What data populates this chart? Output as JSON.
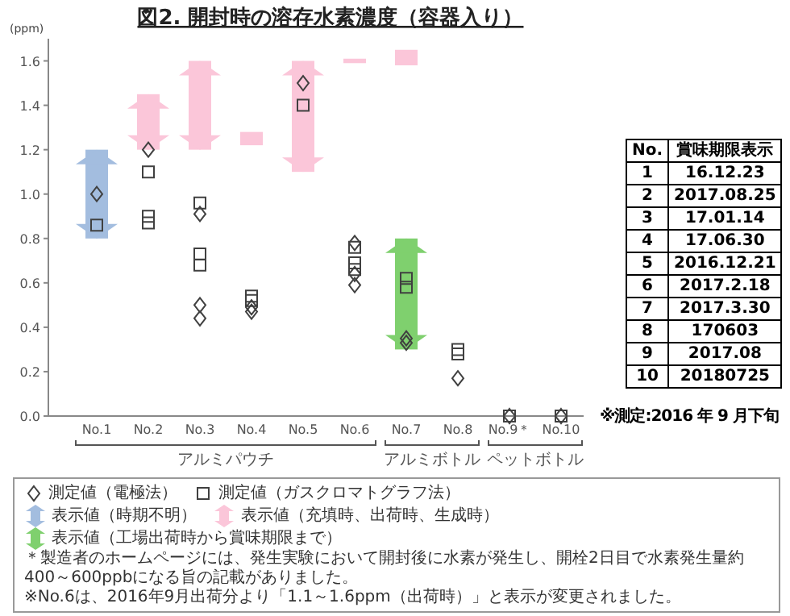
{
  "chart_data": {
    "type": "scatter",
    "title": "図2. 開封時の溶存水素濃度（容器入り）",
    "ylabel": "(ppm)",
    "categories": [
      "No.1",
      "No.2",
      "No.3",
      "No.4",
      "No.5",
      "No.6",
      "No.7",
      "No.8",
      "No.9＊",
      "No.10"
    ],
    "ylim": [
      0,
      1.7
    ],
    "yticks": [
      {
        "value": 0,
        "label": "0.0"
      },
      0.2,
      0.4,
      0.6,
      0.8,
      {
        "value": 1,
        "label": "1.0"
      },
      1.2,
      1.4,
      1.6
    ],
    "legend": "bottom",
    "series": [
      {
        "type": "bar",
        "name": "表示値（時期不明）",
        "color": "#a3bddf",
        "values": [
          0.4,
          null,
          null,
          null,
          null,
          null,
          null,
          null,
          null,
          null
        ],
        "base": [
          0.8,
          null,
          null,
          null,
          null,
          null,
          null,
          null,
          null,
          null
        ]
      },
      {
        "type": "bar",
        "name": "表示値（充填時、出荷時、生成時）",
        "color": "#fbc6d9",
        "values": [
          null,
          0.25,
          0.4,
          0.06,
          0.5,
          0.02,
          0.07,
          null,
          null,
          null
        ],
        "base": [
          null,
          1.2,
          1.2,
          1.22,
          1.1,
          1.59,
          1.58,
          null,
          null,
          null
        ]
      },
      {
        "type": "bar",
        "name": "表示値（工場出荷時から賞味期限まで）",
        "color": "#7fd06e",
        "values": [
          null,
          null,
          null,
          null,
          null,
          null,
          0.5,
          null,
          null,
          null
        ],
        "base": [
          null,
          null,
          null,
          null,
          null,
          null,
          0.3,
          null,
          null,
          null
        ]
      },
      {
        "type": "scatter",
        "name": "測定値（電極法）",
        "color": "#404040",
        "marker": "diamond",
        "x": [
          "No.1",
          "No.2",
          "No.3",
          "No.3",
          "No.3",
          "No.4",
          "No.4",
          "No.5",
          "No.6",
          "No.6",
          "No.6",
          "No.7",
          "No.7",
          "No.8",
          "No.9＊",
          "No.10"
        ],
        "values": [
          1.0,
          1.2,
          0.91,
          0.5,
          0.44,
          0.49,
          0.47,
          1.5,
          0.78,
          0.64,
          0.59,
          0.35,
          0.33,
          0.17,
          0,
          0
        ]
      },
      {
        "type": "scatter",
        "name": "測定値（ガスクロマトグラフ法）",
        "color": "#404040",
        "marker": "square",
        "x": [
          "No.1",
          "No.2",
          "No.2",
          "No.2",
          "No.3",
          "No.3",
          "No.3",
          "No.4",
          "No.4",
          "No.5",
          "No.6",
          "No.6",
          "No.6",
          "No.7",
          "No.7",
          "No.8",
          "No.8",
          "No.9＊",
          "No.10"
        ],
        "values": [
          0.86,
          1.1,
          0.9,
          0.87,
          0.96,
          0.73,
          0.68,
          0.54,
          0.52,
          1.4,
          0.76,
          0.69,
          0.66,
          0.62,
          0.58,
          0.3,
          0.28,
          0,
          0
        ]
      }
    ],
    "annotations": [
      "アルミパウチ",
      "アルミボトル",
      "ペットボトル",
      "＊製造者のホームページには、発生実験において開封後に水素が発生し、開栓2日目で水素発生量約400～600ppbになる旨の記載がありました。",
      "※No.6は、2016年9月出荷分より「1.1～1.6ppm（出荷時）」と表示が変更されました。",
      "※測定:2016 年 9 月下旬",
      "No.",
      "賞味期限表示",
      "1",
      "16.12.23",
      "2",
      "2017.08.25",
      "3",
      "17.01.14",
      "4",
      "17.06.30",
      "5",
      "2016.12.21",
      "6",
      "2017.2.18",
      "7",
      "2017.3.30",
      "8",
      "170603",
      "9",
      "2017.08",
      "10",
      "20180725"
    ]
  }
}
